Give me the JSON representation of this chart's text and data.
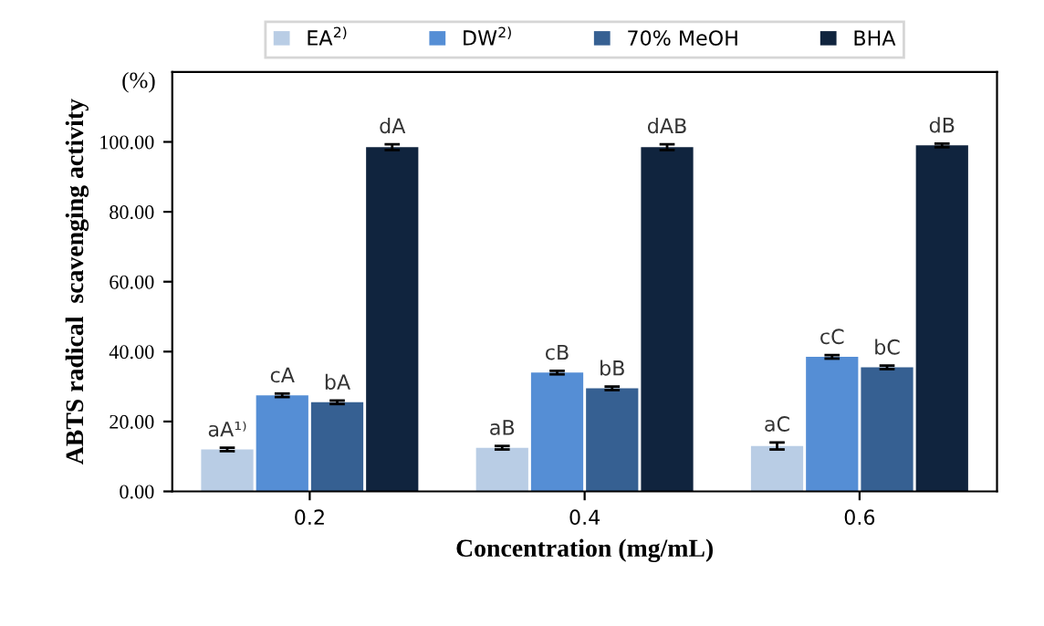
{
  "chart_data": {
    "type": "bar",
    "xlabel": "Concentration (mg/mL)",
    "ylabel": "ABTS radical  scavenging activity",
    "annotations": [
      "(%)"
    ],
    "categories": [
      "0.2",
      "0.4",
      "0.6"
    ],
    "series": [
      {
        "name": "EA$^{2)}$",
        "color": "#b9cde5",
        "values": [
          12,
          12.5,
          13
        ],
        "errors": [
          0.5,
          0.5,
          1
        ],
        "value_labels": [
          "aA¹⁾",
          "aB",
          "aC"
        ]
      },
      {
        "name": "DW$^{2)}$",
        "color": "#558ed5",
        "values": [
          27.5,
          34,
          38.5
        ],
        "errors": [
          0.5,
          0.5,
          0.5
        ],
        "value_labels": [
          "cA",
          "cB",
          "cC"
        ]
      },
      {
        "name": "70% MeOH",
        "color": "#366092",
        "values": [
          25.5,
          29.5,
          35.5
        ],
        "errors": [
          0.5,
          0.5,
          0.5
        ],
        "value_labels": [
          "bA",
          "bB",
          "bC"
        ]
      },
      {
        "name": "BHA",
        "color": "#10243e",
        "values": [
          98.5,
          98.5,
          99
        ],
        "errors": [
          0.8,
          0.8,
          0.5
        ],
        "value_labels": [
          "dA",
          "dAB",
          "dB"
        ]
      }
    ],
    "ylim": [
      0,
      120
    ],
    "yticks": [
      {
        "value": 0,
        "label": "0.00"
      },
      {
        "value": 20,
        "label": "20.00"
      },
      {
        "value": 40,
        "label": "40.00"
      },
      {
        "value": 60,
        "label": "60.00"
      },
      {
        "value": 80,
        "label": "80.00"
      },
      {
        "value": 100,
        "label": "100.00"
      }
    ],
    "legend": "top",
    "grid": false
  }
}
